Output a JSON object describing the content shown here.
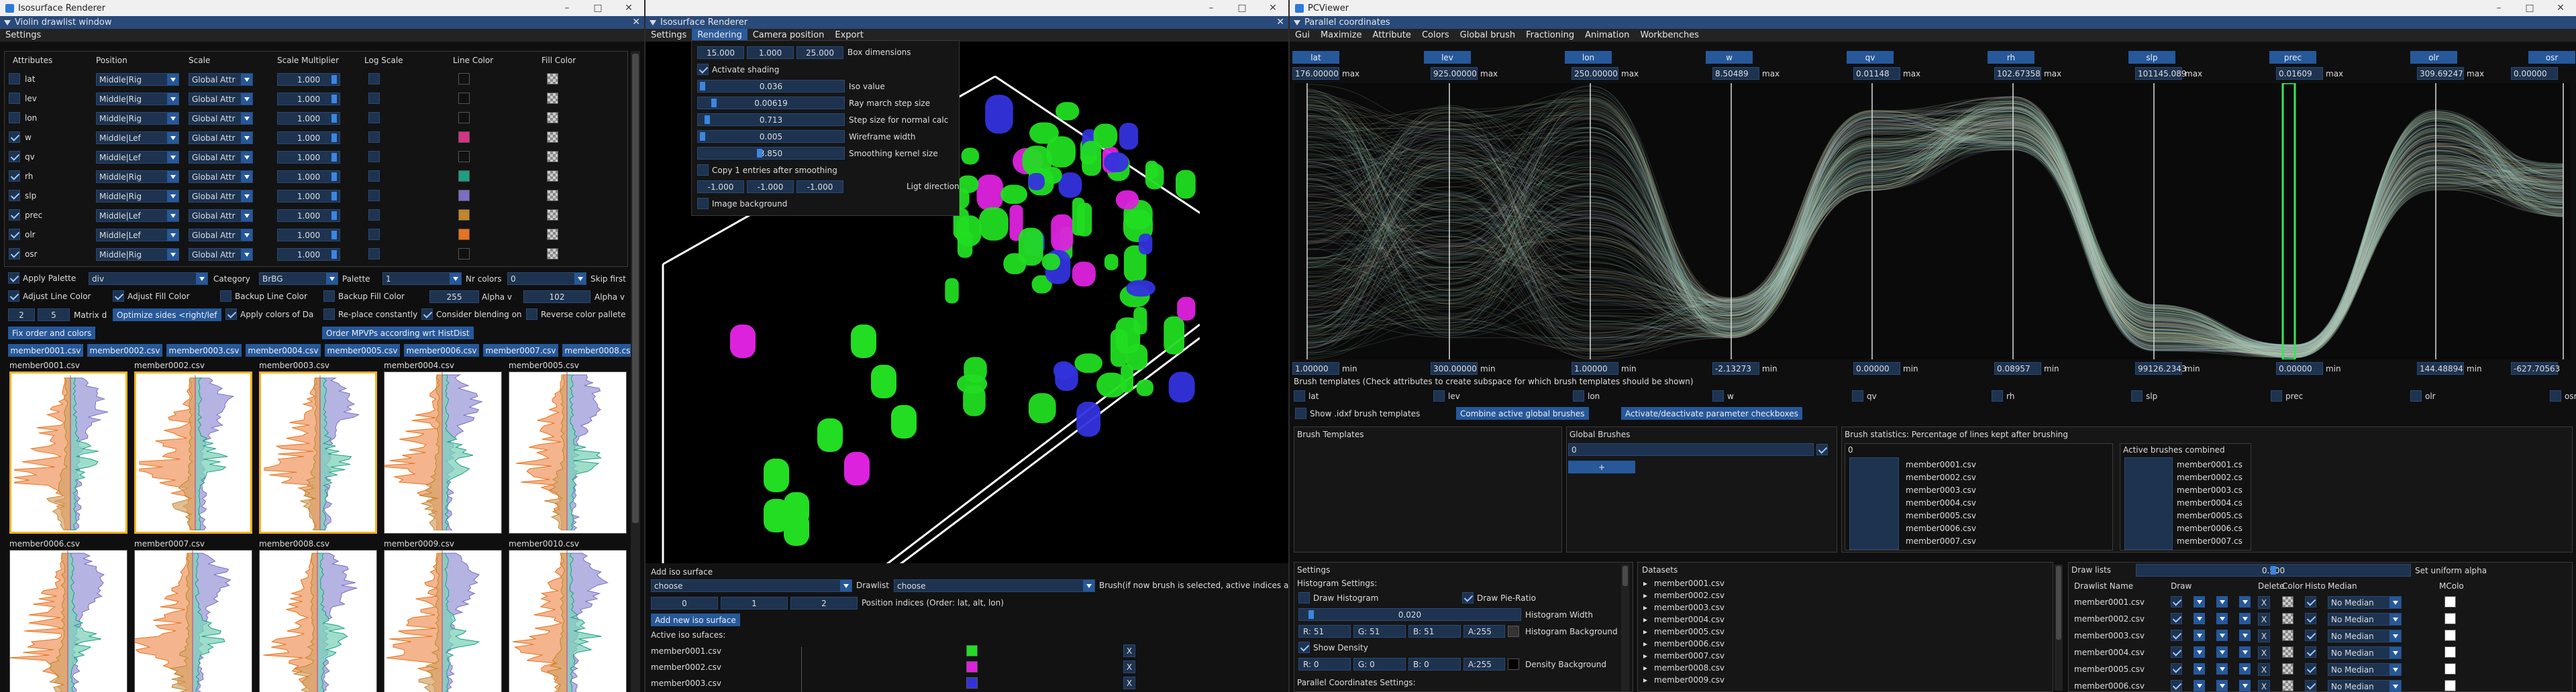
{
  "windows": {
    "left": {
      "os_title": "Isosurface Renderer",
      "im_title": "Violin drawlist window",
      "menu": [
        "Settings"
      ]
    },
    "middle": {
      "im_title": "Isosurface Renderer",
      "menu": [
        "Settings",
        "Rendering",
        "Camera position",
        "Export"
      ]
    },
    "right": {
      "os_title": "PCViewer",
      "im_title": "Parallel coordinates",
      "menu": [
        "Gui",
        "Maximize",
        "Attribute",
        "Colors",
        "Global brush",
        "Fractioning",
        "Animation",
        "Workbenches"
      ]
    }
  },
  "violin": {
    "columns": [
      "Attributes",
      "Position",
      "Scale",
      "Scale Multiplier",
      "Log Scale",
      "Line Color",
      "Fill Color"
    ],
    "rows": [
      {
        "name": "lat",
        "checked": false,
        "position": "Middle|Rig",
        "scale": "Global Attr",
        "mult": "1.000",
        "line": "#101010"
      },
      {
        "name": "lev",
        "checked": false,
        "position": "Middle|Rig",
        "scale": "Global Attr",
        "mult": "1.000",
        "line": "#101010"
      },
      {
        "name": "lon",
        "checked": false,
        "position": "Middle|Rig",
        "scale": "Global Attr",
        "mult": "1.000",
        "line": "#101010"
      },
      {
        "name": "w",
        "checked": true,
        "position": "Middle|Lef",
        "scale": "Global Attr",
        "mult": "1.000",
        "line": "#d63384"
      },
      {
        "name": "qv",
        "checked": true,
        "position": "Middle|Lef",
        "scale": "Global Attr",
        "mult": "1.000",
        "line": "#101010"
      },
      {
        "name": "rh",
        "checked": true,
        "position": "Middle|Rig",
        "scale": "Global Attr",
        "mult": "1.000",
        "line": "#1aa083"
      },
      {
        "name": "slp",
        "checked": true,
        "position": "Middle|Rig",
        "scale": "Global Attr",
        "mult": "1.000",
        "line": "#7b6fc4"
      },
      {
        "name": "prec",
        "checked": true,
        "position": "Middle|Lef",
        "scale": "Global Attr",
        "mult": "1.000",
        "line": "#c2852a"
      },
      {
        "name": "olr",
        "checked": true,
        "position": "Middle|Lef",
        "scale": "Global Attr",
        "mult": "1.000",
        "line": "#e8731a"
      },
      {
        "name": "osr",
        "checked": true,
        "position": "Middle|Rig",
        "scale": "Global Attr",
        "mult": "1.000",
        "line": "#101010"
      }
    ],
    "apply_palette": "Apply Palette",
    "palette_type": "div",
    "category_label": "Category",
    "category": "BrBG",
    "palette_label": "Palette",
    "palette": "1",
    "nr_colors_label": "Nr colors",
    "nr_colors": "0",
    "skip_first": "Skip first",
    "adjust_line": "Adjust Line Color",
    "adjust_fill": "Adjust Fill Color",
    "backup_line": "Backup Line Color",
    "backup_fill": "Backup Fill Color",
    "alpha_value": "255",
    "alpha_label": "Alpha v",
    "alpha2_value": "102",
    "alpha2_label": "Alpha v",
    "matrix_a": "2",
    "matrix_b": "5",
    "matrix_label": "Matrix d",
    "optimize_btn": "Optimize sides <right/lef",
    "apply_colors": "Apply colors of Da",
    "replace": "Re-place constantly",
    "consider": "Consider blending on",
    "reverse": "Reverse color pallete",
    "fix_btn": "Fix order and colors",
    "order_btn": "Order MPVPs according wrt HistDist",
    "tabs": [
      "member0001.csv",
      "member0002.csv",
      "member0003.csv",
      "member0004.csv",
      "member0005.csv",
      "member0006.csv",
      "member0007.csv",
      "member0008.csv"
    ],
    "plots": [
      "member0001.csv",
      "member0002.csv",
      "member0003.csv",
      "member0004.csv",
      "member0005.csv",
      "member0006.csv",
      "member0007.csv",
      "member0008.csv",
      "member0009.csv",
      "member0010.csv"
    ]
  },
  "iso": {
    "box_dims": [
      "15.000",
      "1.000",
      "25.000"
    ],
    "box_label": "Box dimensions",
    "activate_shading": "Activate shading",
    "iso_value": "0.036",
    "iso_label": "Iso value",
    "ray_step": "0.00619",
    "ray_label": "Ray march step size",
    "normal_step": "0.713",
    "normal_label": "Step size for normal calc",
    "wire": "0.005",
    "wire_label": "Wireframe width",
    "smooth": "3.850",
    "smooth_label": "Smoothing kernel size",
    "copy_label": "Copy 1 entries after smoothing",
    "light": [
      "-1.000",
      "-1.000",
      "-1.000"
    ],
    "light_label": "Ligt direction",
    "image_bg": "Image background",
    "add_title": "Add iso surface",
    "choose1": "choose",
    "drawlist_label": "Drawlist",
    "choose2": "choose",
    "brush_hint": "Brush(if now brush is selected, active indices a",
    "pos": [
      "0",
      "1",
      "2"
    ],
    "pos_label": "Position indices (Order: lat, alt, lon)",
    "add_btn": "Add new iso surface",
    "active_label": "Active iso sufaces:",
    "active": [
      {
        "name": "member0001.csv",
        "color": "#22dd22"
      },
      {
        "name": "member0002.csv",
        "color": "#dd22dd"
      },
      {
        "name": "member0003.csv",
        "color": "#3333dd"
      }
    ]
  },
  "pc": {
    "axes": [
      {
        "name": "lat",
        "max": "176.00000",
        "min": "1.00000"
      },
      {
        "name": "lev",
        "max": "925.00000",
        "min": "300.00000"
      },
      {
        "name": "lon",
        "max": "250.00000",
        "min": "1.00000"
      },
      {
        "name": "w",
        "max": "8.50489",
        "min": "-2.13273"
      },
      {
        "name": "qv",
        "max": "0.01148",
        "min": "0.00000"
      },
      {
        "name": "rh",
        "max": "102.67358",
        "min": "0.08957"
      },
      {
        "name": "slp",
        "max": "101145.089",
        "min": "99126.2343"
      },
      {
        "name": "prec",
        "max": "0.01609",
        "min": "0.00000"
      },
      {
        "name": "olr",
        "max": "309.69247",
        "min": "144.48894"
      },
      {
        "name": "osr",
        "max": "0.00000",
        "min": "-627.70563"
      }
    ],
    "max_word": "max",
    "min_word": "min",
    "brush_templates_hint": "Brush templates (Check attributes to create subspace for which brush templates should be shown)",
    "show_idxf": "Show .idxf brush templates",
    "combine_btn": "Combine active global brushes",
    "activate_btn": "Activate/deactivate parameter checkboxes",
    "bt_title": "Brush Templates",
    "gb_title": "Global Brushes",
    "gb_value": "0",
    "gb_plus": "+",
    "stats_title": "Brush statistics: Percentage of lines kept after brushing",
    "stats_zero": "0",
    "stats_list": [
      "member0001.csv",
      "member0002.csv",
      "member0003.csv",
      "member0004.csv",
      "member0005.csv",
      "member0006.csv",
      "member0007.csv"
    ],
    "abc_title": "Active brushes combined",
    "abc_list": [
      "member0001.cs",
      "member0002.cs",
      "member0003.cs",
      "member0004.cs",
      "member0005.cs",
      "member0006.cs",
      "member0007.cs"
    ],
    "settings_title": "Settings",
    "hist_settings": "Histogram Settings:",
    "draw_hist": "Draw Histogram",
    "draw_pie": "Draw Pie-Ratio",
    "hist_width": "0.020",
    "hist_width_label": "Histogram Width",
    "rgba1": [
      "R: 51",
      "G: 51",
      "B: 51",
      "A:255"
    ],
    "hist_bg": "Histogram Background",
    "show_density": "Show Density",
    "rgba2": [
      "R: 0",
      "G: 0",
      "B: 0",
      "A:255"
    ],
    "density_bg": "Density Background",
    "pc_settings": "Parallel Coordinates Settings:",
    "datasets_title": "Datasets",
    "datasets": [
      "member0001.csv",
      "member0002.csv",
      "member0003.csv",
      "member0004.csv",
      "member0005.csv",
      "member0006.csv",
      "member0007.csv",
      "member0008.csv",
      "member0009.csv"
    ],
    "drawlists_title": "Draw lists",
    "alpha_val": "0.500",
    "set_alpha": "Set uniform alpha",
    "dl_cols": [
      "Drawlist Name",
      "Draw",
      "",
      "",
      "",
      "Delete",
      "Color",
      "Histo",
      "Median",
      "MColo"
    ],
    "drawlists": [
      {
        "name": "member0001.csv",
        "median": "No Median"
      },
      {
        "name": "member0002.csv",
        "median": "No Median"
      },
      {
        "name": "member0003.csv",
        "median": "No Median"
      },
      {
        "name": "member0004.csv",
        "median": "No Median"
      },
      {
        "name": "member0005.csv",
        "median": "No Median"
      },
      {
        "name": "member0006.csv",
        "median": "No Median"
      }
    ]
  }
}
